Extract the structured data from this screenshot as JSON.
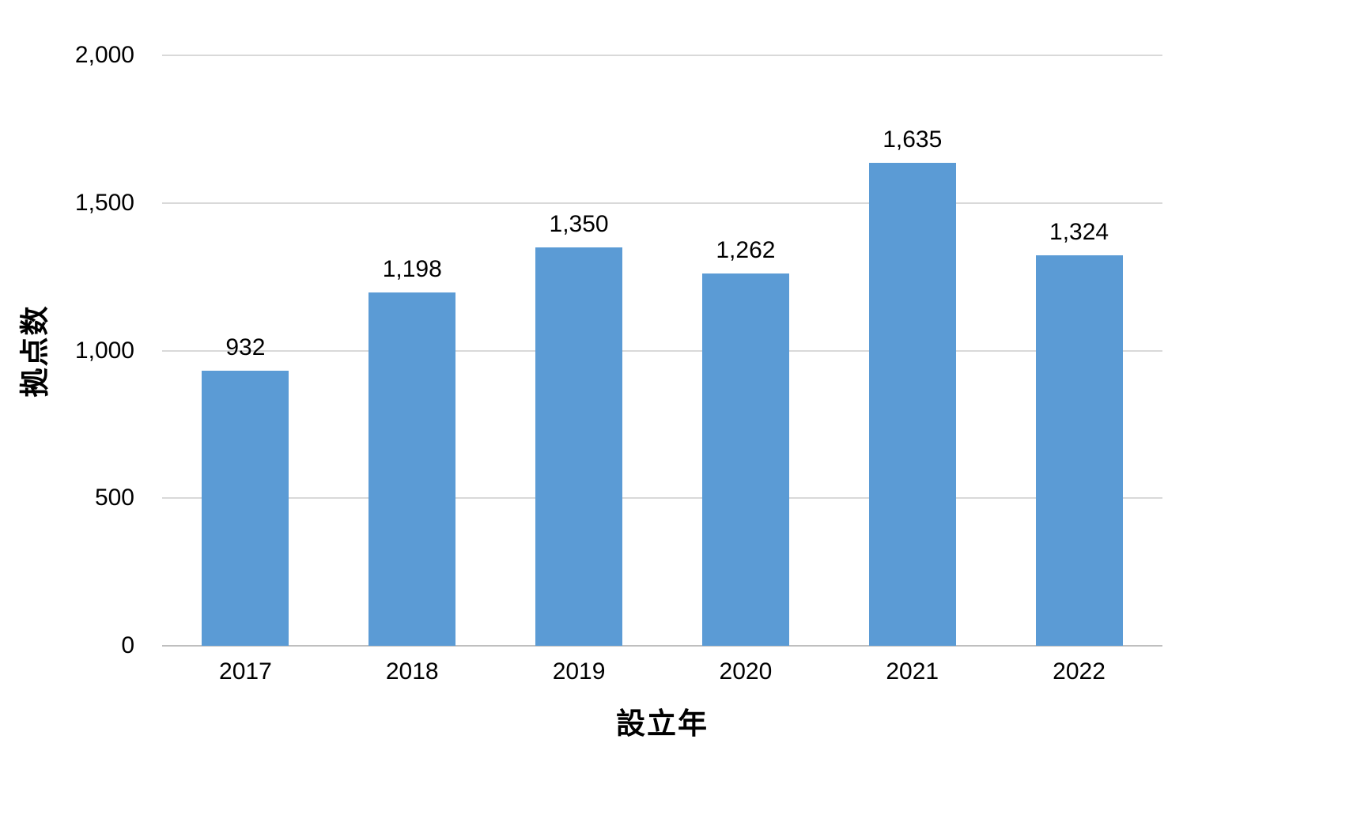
{
  "chart_data": {
    "type": "bar",
    "title": "",
    "xlabel": "設立年",
    "ylabel": "拠点数",
    "categories": [
      "2017",
      "2018",
      "2019",
      "2020",
      "2021",
      "2022"
    ],
    "values": [
      932,
      1198,
      1350,
      1262,
      1635,
      1324
    ],
    "value_labels": [
      "932",
      "1,198",
      "1,350",
      "1,262",
      "1,635",
      "1,324"
    ],
    "ylim": [
      0,
      2000
    ],
    "yticks": [
      0,
      500,
      1000,
      1500,
      2000
    ],
    "ytick_labels": [
      "0",
      "500",
      "1,000",
      "1,500",
      "2,000"
    ],
    "grid": true,
    "legend": "none",
    "bar_color": "#5B9BD5",
    "gridline_color": "#D9D9D9",
    "axis_line_color": "#BFBFBF",
    "text_color": "#000000"
  }
}
